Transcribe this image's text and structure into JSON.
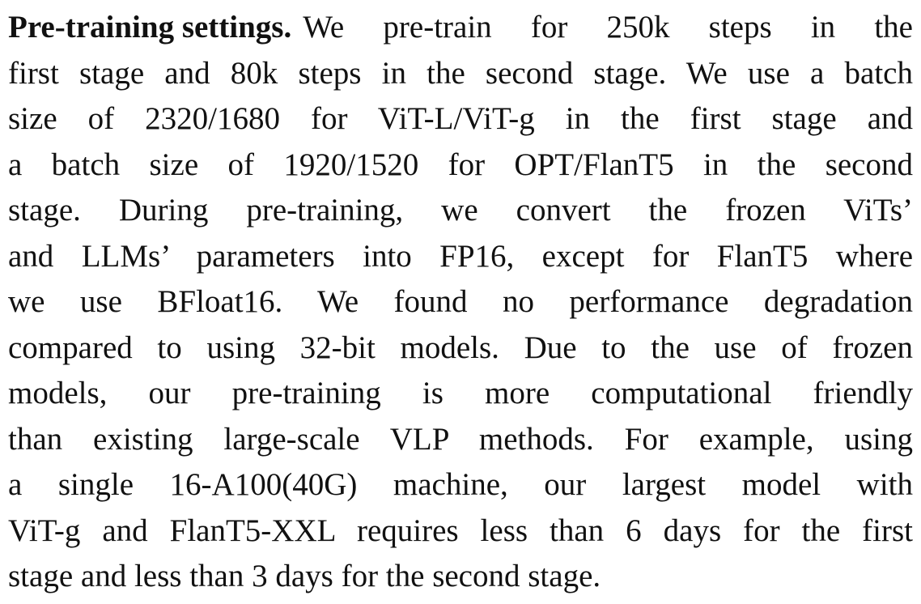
{
  "paragraph": {
    "heading": "Pre-training settings.",
    "lines": [
      "We pre-train for 250k steps in the",
      "first stage and 80k steps in the second stage. We use a batch",
      "size of 2320/1680 for ViT-L/ViT-g in the first stage and",
      "a batch size of 1920/1520 for OPT/FlanT5 in the second",
      "stage. During pre-training, we convert the frozen ViTs’",
      "and LLMs’ parameters into FP16, except for FlanT5 where",
      "we use BFloat16. We found no performance degradation",
      "compared to using 32-bit models. Due to the use of frozen",
      "models, our pre-training is more computational friendly",
      "than existing large-scale VLP methods. For example, using",
      "a single 16-A100(40G) machine, our largest model with",
      "ViT-g and FlanT5-XXL requires less than 6 days for the first",
      "stage and less than 3 days for the second stage."
    ]
  }
}
